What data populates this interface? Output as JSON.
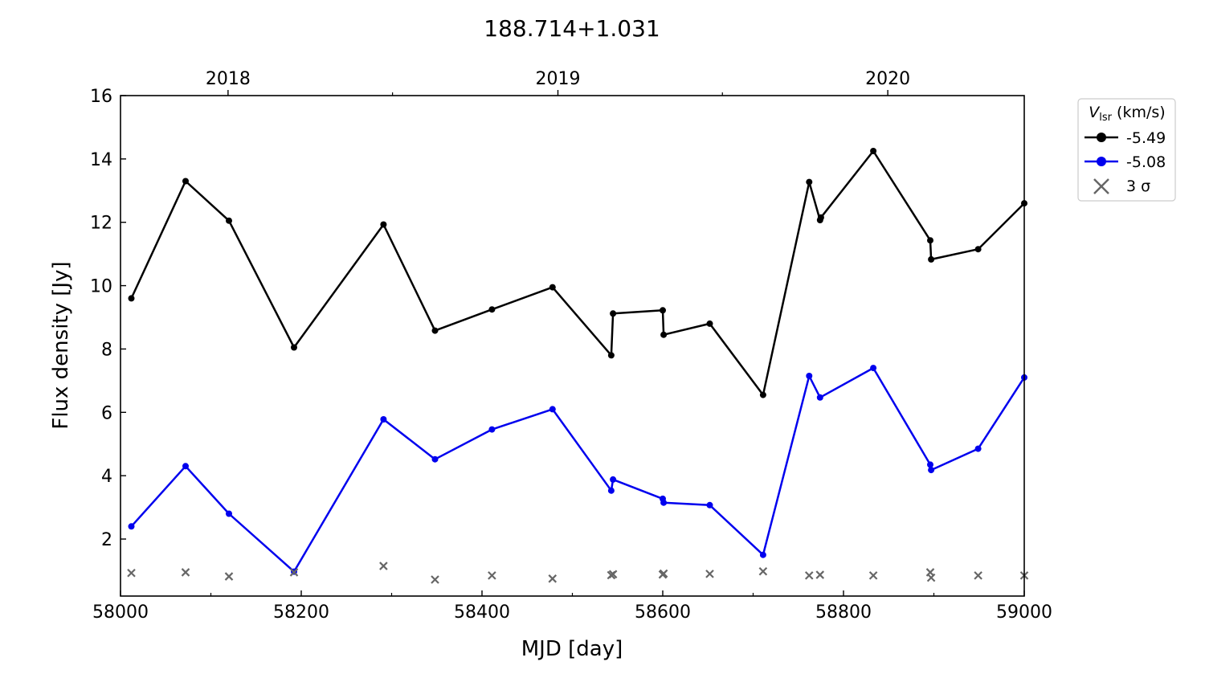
{
  "chart_data": {
    "type": "line",
    "title": "188.714+1.031",
    "xlabel": "MJD [day]",
    "ylabel": "Flux density [Jy]",
    "xlim": [
      58000,
      59000
    ],
    "ylim": [
      0.2,
      16
    ],
    "xticks": [
      58000,
      58200,
      58400,
      58600,
      58800,
      59000
    ],
    "xticks_minor": [
      58100,
      58300,
      58500,
      58700,
      58900
    ],
    "yticks": [
      2,
      4,
      6,
      8,
      10,
      12,
      14,
      16
    ],
    "top_axis": {
      "ticks": [
        {
          "label": "2018",
          "x": 58119
        },
        {
          "label": "2019",
          "x": 58484
        },
        {
          "label": "2020",
          "x": 58849
        }
      ],
      "minor_ticks": [
        58301,
        58666
      ]
    },
    "legend": {
      "title_main": "V",
      "title_sub": "lsr",
      "title_unit": " (km/s)",
      "sigma_label": "3 σ",
      "placement": "outside-right-top"
    },
    "series": [
      {
        "name": "-5.49",
        "color": "#000000",
        "x": [
          58012,
          58072,
          58120,
          58192,
          58291,
          58348,
          58411,
          58478,
          58543,
          58545,
          58600,
          58601,
          58652,
          58711,
          58762,
          58774,
          58775,
          58833,
          58896,
          58897,
          58949,
          59000
        ],
        "y": [
          9.6,
          13.3,
          12.05,
          8.05,
          11.93,
          8.58,
          9.25,
          9.95,
          7.8,
          9.12,
          9.22,
          8.45,
          8.8,
          6.55,
          13.27,
          12.07,
          12.15,
          14.25,
          11.43,
          10.83,
          11.15,
          12.6
        ]
      },
      {
        "name": "-5.08",
        "color": "#0000ee",
        "x": [
          58012,
          58072,
          58120,
          58192,
          58291,
          58348,
          58411,
          58478,
          58543,
          58545,
          58600,
          58601,
          58652,
          58711,
          58762,
          58774,
          58833,
          58896,
          58897,
          58949,
          59000
        ],
        "y": [
          2.4,
          4.3,
          2.8,
          0.97,
          5.78,
          4.52,
          5.46,
          6.1,
          3.53,
          3.88,
          3.27,
          3.15,
          3.07,
          1.5,
          7.15,
          6.47,
          7.4,
          4.35,
          4.18,
          4.85,
          7.1
        ]
      }
    ],
    "sigma": {
      "name": "3 σ",
      "color": "#666666",
      "x": [
        58012,
        58072,
        58120,
        58192,
        58291,
        58348,
        58411,
        58478,
        58543,
        58545,
        58600,
        58601,
        58652,
        58711,
        58762,
        58774,
        58833,
        58896,
        58897,
        58949,
        59000
      ],
      "y": [
        0.93,
        0.95,
        0.82,
        0.95,
        1.15,
        0.72,
        0.85,
        0.75,
        0.86,
        0.89,
        0.88,
        0.91,
        0.9,
        0.98,
        0.85,
        0.87,
        0.85,
        0.95,
        0.78,
        0.85,
        0.85
      ]
    }
  }
}
